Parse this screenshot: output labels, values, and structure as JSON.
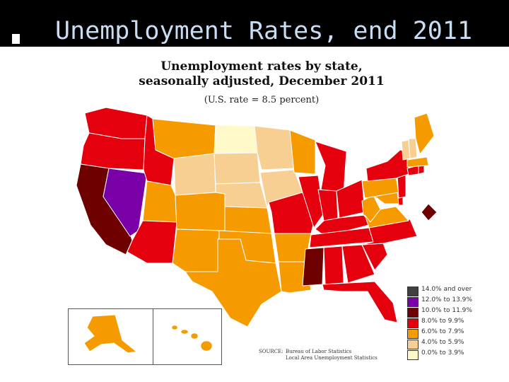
{
  "slide": {
    "title": "Unemployment Rates, end 2011"
  },
  "map": {
    "title_line1": "Unemployment rates by state,",
    "title_line2": "seasonally adjusted, December 2011",
    "subtitle": "(U.S. rate = 8.5 percent)",
    "source_label": "SOURCE:",
    "source_line1": "Bureau of Labor Statistics",
    "source_line2": "Local Area Unemployment Statistics"
  },
  "legend": [
    {
      "label": "14.0% and over",
      "color": "#404040"
    },
    {
      "label": "12.0% to 13.9%",
      "color": "#7a00a8"
    },
    {
      "label": "10.0% to 11.9%",
      "color": "#6e0000"
    },
    {
      "label": "8.0% to 9.9%",
      "color": "#e4000c"
    },
    {
      "label": "6.0% to 7.9%",
      "color": "#f59b00"
    },
    {
      "label": "4.0% to 5.9%",
      "color": "#f7cf92"
    },
    {
      "label": "0.0% to 3.9%",
      "color": "#fff8c8"
    }
  ],
  "colors": {
    "c_10_11_9": "#6e0000",
    "c_12_13_9": "#7a00a8",
    "c_8_9_9": "#e4000c",
    "c_6_7_9": "#f59b00",
    "c_4_5_9": "#f7cf92",
    "c_0_3_9": "#fff8c8"
  }
}
